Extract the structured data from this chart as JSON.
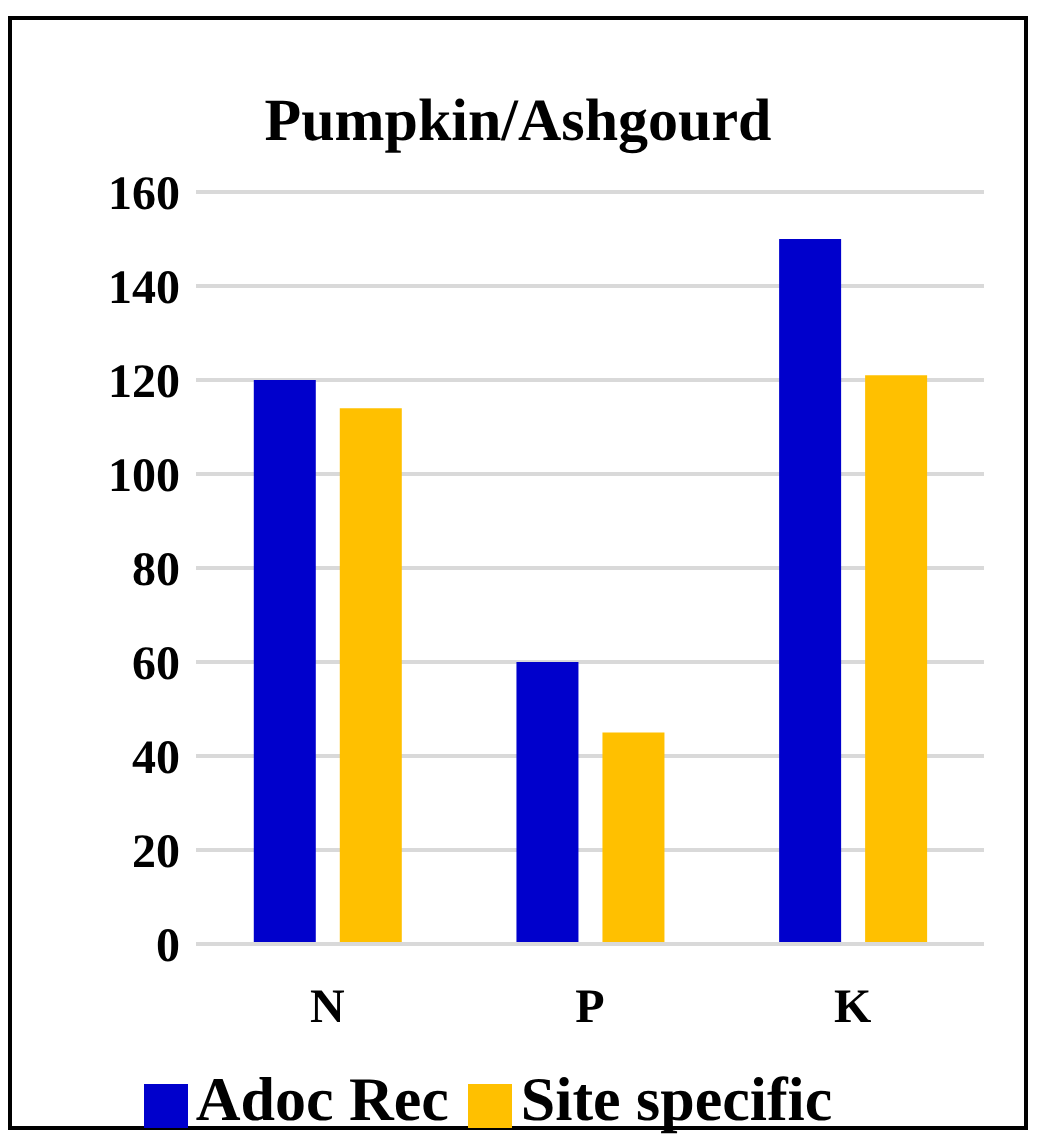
{
  "chart_data": {
    "type": "bar",
    "title": "Pumpkin/Ashgourd",
    "categories": [
      "N",
      "P",
      "K"
    ],
    "series": [
      {
        "name": "Adoc Rec",
        "color": "#0000cc",
        "values": [
          120,
          60,
          150
        ]
      },
      {
        "name": "Site specific",
        "color": "#ffc000",
        "values": [
          114,
          45,
          121
        ]
      }
    ],
    "ylim": [
      0,
      160
    ],
    "yticks": [
      0,
      20,
      40,
      60,
      80,
      100,
      120,
      140,
      160
    ],
    "grid": "y",
    "legend": "bottom"
  }
}
